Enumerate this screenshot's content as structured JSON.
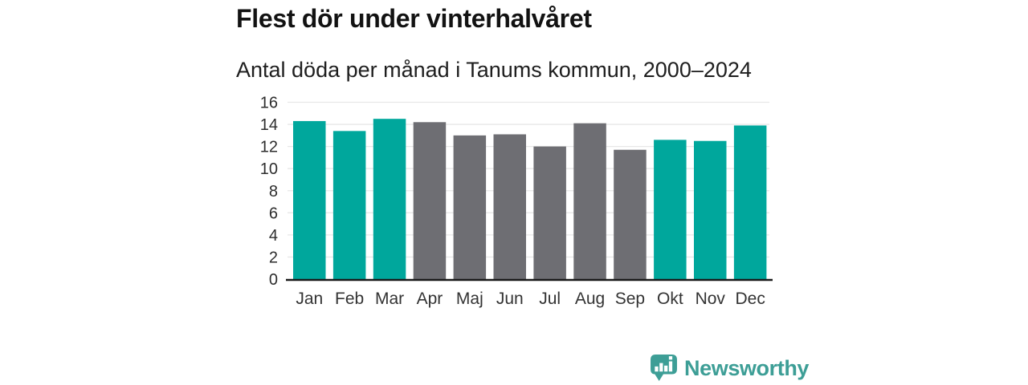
{
  "header": {
    "title": "Flest dör under vinterhalvåret",
    "subtitle": "Antal döda per månad i Tanums kommun, 2000–2024"
  },
  "chart_data": {
    "type": "bar",
    "title": "Flest dör under vinterhalvåret",
    "subtitle": "Antal döda per månad i Tanums kommun, 2000–2024",
    "categories": [
      "Jan",
      "Feb",
      "Mar",
      "Apr",
      "Maj",
      "Jun",
      "Jul",
      "Aug",
      "Sep",
      "Okt",
      "Nov",
      "Dec"
    ],
    "values": [
      14.3,
      13.4,
      14.5,
      14.2,
      13.0,
      13.1,
      12.0,
      14.1,
      11.7,
      12.6,
      12.5,
      13.9
    ],
    "highlighted": [
      true,
      true,
      true,
      false,
      false,
      false,
      false,
      false,
      false,
      true,
      true,
      true
    ],
    "highlight_meaning": "winter half-year months (Okt–Mar) in teal, summer half-year (Apr–Sep) in gray",
    "xlabel": "",
    "ylabel": "",
    "ylim": [
      0,
      16
    ],
    "yticks": [
      0,
      2,
      4,
      6,
      8,
      10,
      12,
      14,
      16
    ],
    "grid": true,
    "legend": "none",
    "colors": {
      "highlight": "#00a79c",
      "muted": "#6e6e73",
      "gridline": "#e7e7e7",
      "axis": "#1a1a1a",
      "tick_label": "#2d2d2d",
      "month_label": "#333333"
    }
  },
  "footer": {
    "brand": "Newsworthy",
    "brand_color": "#3d9e96"
  }
}
